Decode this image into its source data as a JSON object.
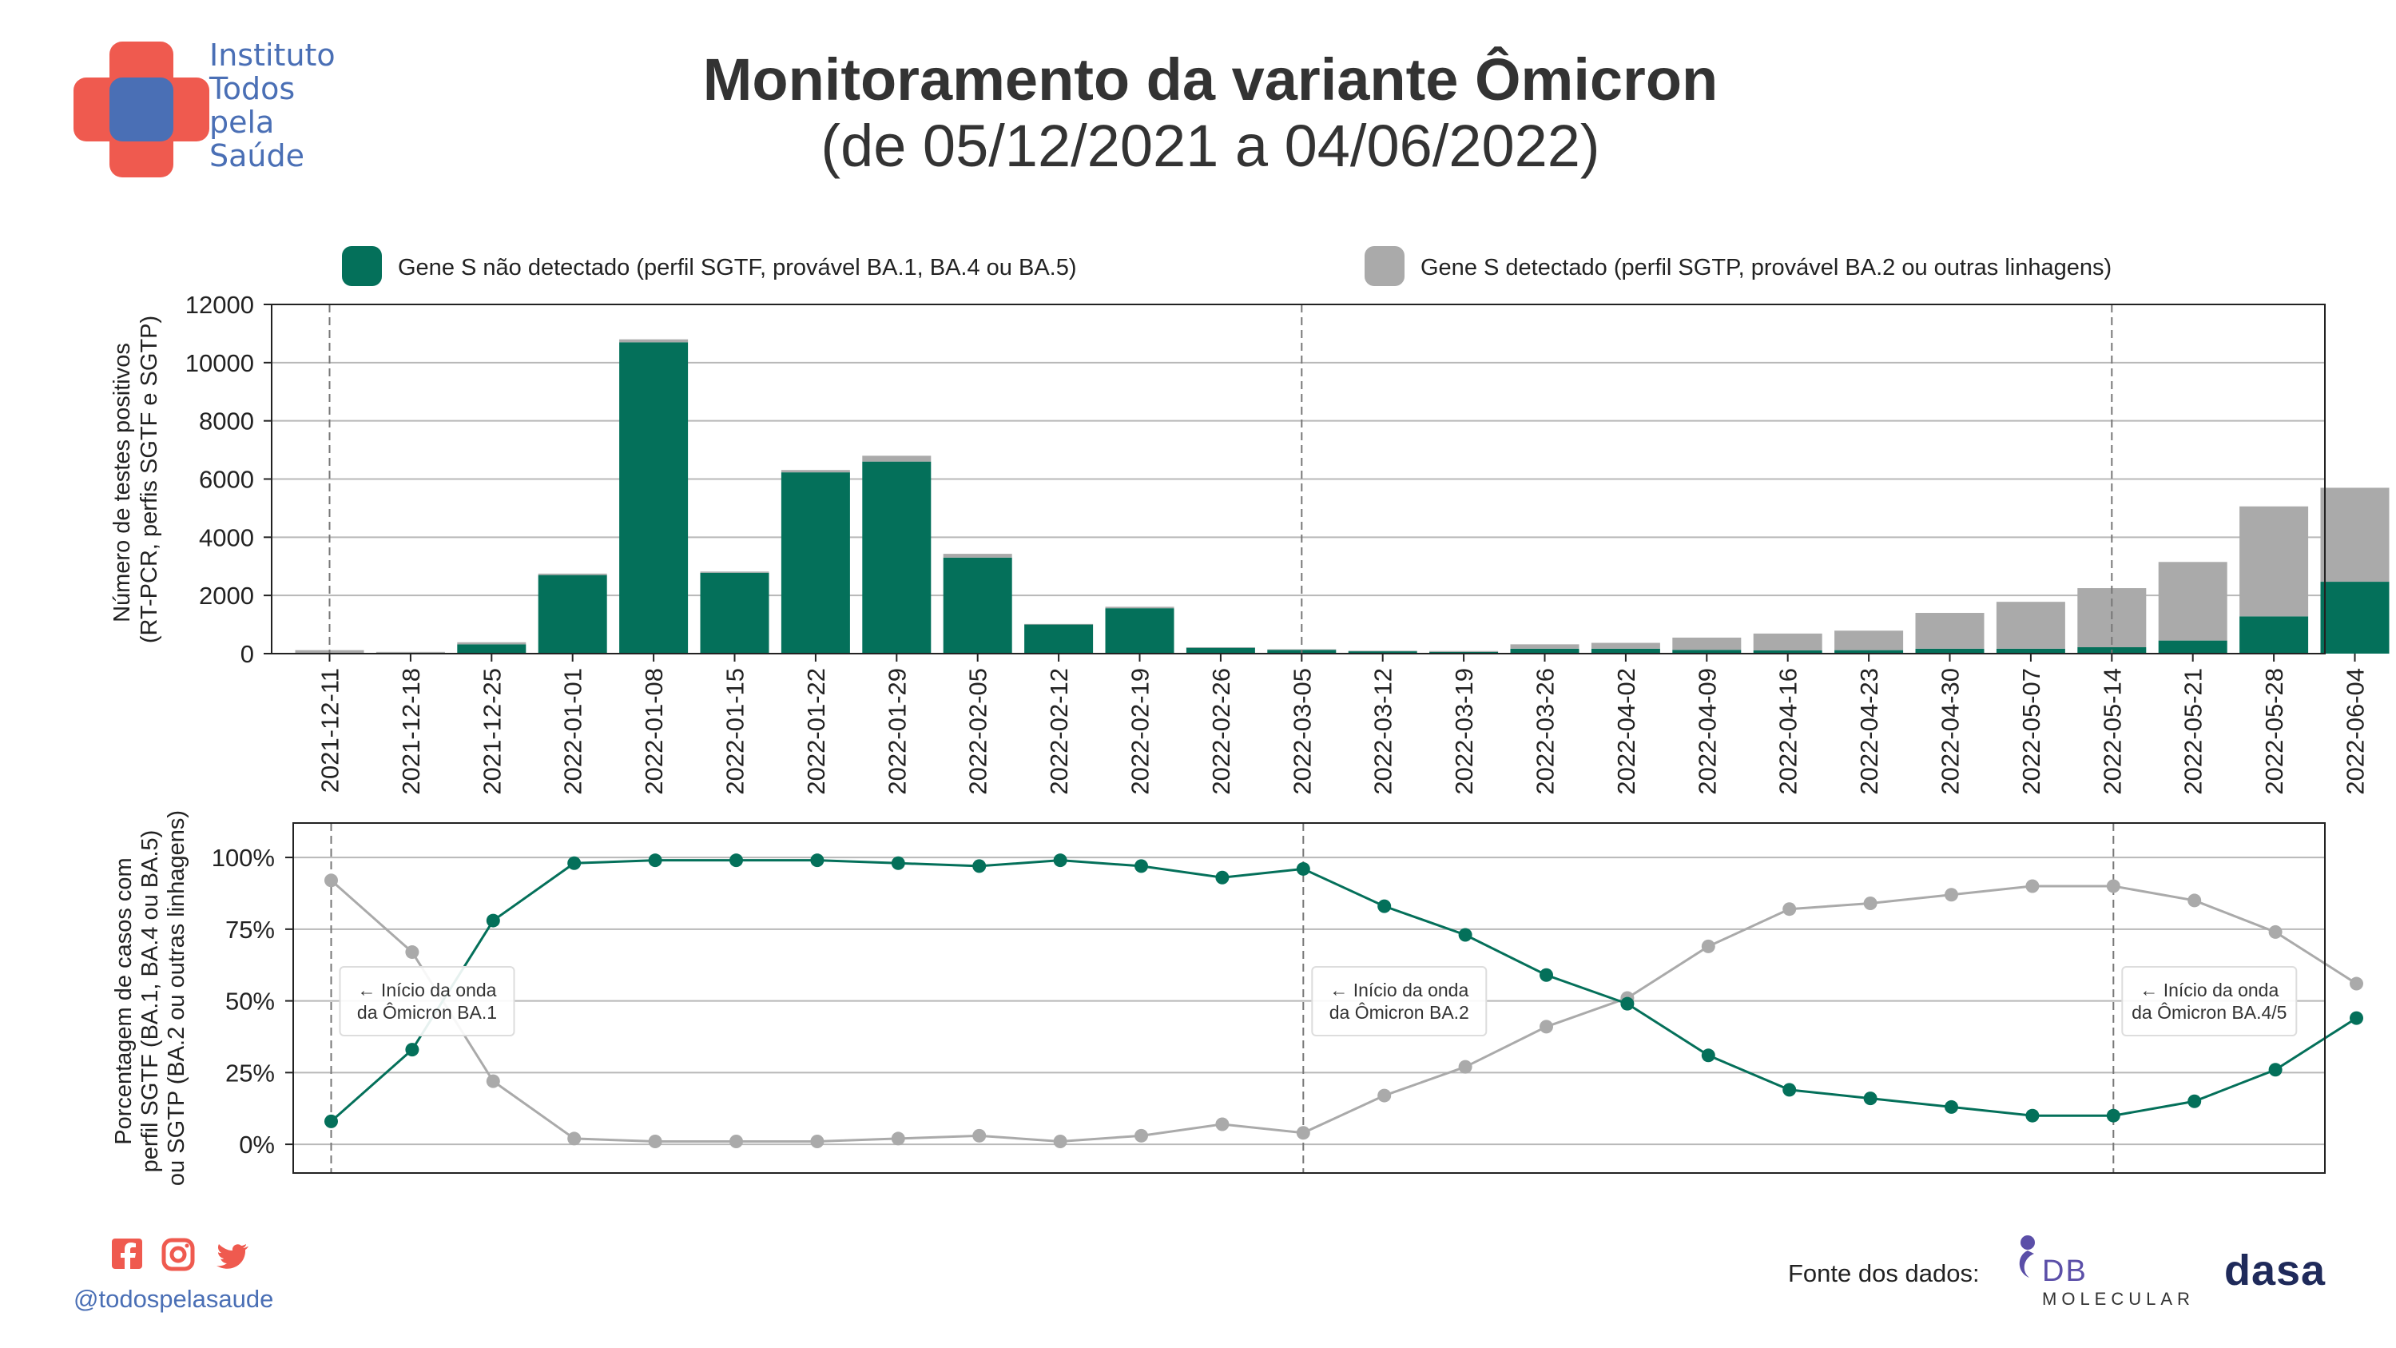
{
  "header": {
    "title": "Monitoramento da variante Ômicron",
    "subtitle": "(de 05/12/2021 a 04/06/2022)"
  },
  "organization": {
    "name_lines": [
      "Instituto",
      "Todos",
      "pela",
      "Saúde"
    ]
  },
  "footer": {
    "handle": "@todospelasaude",
    "source_label": "Fonte dos dados:",
    "partner_db_top": "DB",
    "partner_db_bottom": "MOLECULAR",
    "partner_dasa": "dasa"
  },
  "colors": {
    "sgtf": "#04705a",
    "sgtp": "#aaaaaa",
    "brand_red": "#ef5a4f",
    "brand_blue": "#4a6fb5"
  },
  "icons": [
    "facebook-icon",
    "instagram-icon",
    "twitter-icon"
  ],
  "chart_data": [
    {
      "type": "bar",
      "stacked": true,
      "ylabel": "Número de testes positivos\n(RT-PCR, perfis SGTF e SGTP)",
      "ylim": [
        0,
        12000
      ],
      "yticks": [
        0,
        2000,
        4000,
        6000,
        8000,
        10000,
        12000
      ],
      "legend_position": "top",
      "grid": "y",
      "categories": [
        "2021-12-11",
        "2021-12-18",
        "2021-12-25",
        "2022-01-01",
        "2022-01-08",
        "2022-01-15",
        "2022-01-22",
        "2022-01-29",
        "2022-02-05",
        "2022-02-12",
        "2022-02-19",
        "2022-02-26",
        "2022-03-05",
        "2022-03-12",
        "2022-03-19",
        "2022-03-26",
        "2022-04-02",
        "2022-04-09",
        "2022-04-16",
        "2022-04-23",
        "2022-04-30",
        "2022-05-07",
        "2022-05-14",
        "2022-05-21",
        "2022-05-28",
        "2022-06-04"
      ],
      "series": [
        {
          "name": "Gene S não detectado (perfil SGTF, provável BA.1, BA.4 ou BA.5)",
          "values": [
            10,
            30,
            320,
            2700,
            10700,
            2780,
            6230,
            6600,
            3300,
            1000,
            1560,
            200,
            130,
            80,
            60,
            170,
            170,
            130,
            110,
            120,
            170,
            170,
            220,
            450,
            1280,
            2470
          ]
        },
        {
          "name": "Gene S detectado (perfil SGTP, provável BA.2 ou outras linhagens)",
          "values": [
            110,
            30,
            70,
            50,
            100,
            40,
            80,
            200,
            130,
            20,
            50,
            20,
            20,
            20,
            30,
            150,
            200,
            420,
            580,
            670,
            1230,
            1610,
            2030,
            2700,
            3780,
            3230
          ]
        }
      ],
      "vlines": [
        "2021-12-11",
        "2022-03-05",
        "2022-05-14"
      ]
    },
    {
      "type": "line",
      "ylabel": "Porcentagem de casos com\nperfil SGTF (BA.1, BA.4 ou BA.5)\nou SGTP (BA.2 ou outras linhagens)",
      "ylim": [
        -0.1,
        1.12
      ],
      "yticks": [
        0,
        0.25,
        0.5,
        0.75,
        1.0
      ],
      "ytick_labels": [
        "0%",
        "25%",
        "50%",
        "75%",
        "100%"
      ],
      "grid": "y",
      "series": [
        {
          "name": "SGTF",
          "values": [
            0.08,
            0.33,
            0.78,
            0.98,
            0.99,
            0.99,
            0.99,
            0.98,
            0.97,
            0.99,
            0.97,
            0.93,
            0.96,
            0.83,
            0.73,
            0.59,
            0.49,
            0.31,
            0.19,
            0.16,
            0.13,
            0.1,
            0.1,
            0.15,
            0.26,
            0.44
          ]
        },
        {
          "name": "SGTP",
          "values": [
            0.92,
            0.67,
            0.22,
            0.02,
            0.01,
            0.01,
            0.01,
            0.02,
            0.03,
            0.01,
            0.03,
            0.07,
            0.04,
            0.17,
            0.27,
            0.41,
            0.51,
            0.69,
            0.82,
            0.84,
            0.87,
            0.9,
            0.9,
            0.85,
            0.74,
            0.56
          ]
        }
      ],
      "annotations": [
        {
          "index": 0,
          "line1": "← Início da onda",
          "line2": "da Ômicron BA.1"
        },
        {
          "index": 12,
          "line1": "← Início da onda",
          "line2": "da Ômicron BA.2"
        },
        {
          "index": 22,
          "line1": "← Início da onda",
          "line2": "da Ômicron BA.4/5"
        }
      ]
    }
  ]
}
